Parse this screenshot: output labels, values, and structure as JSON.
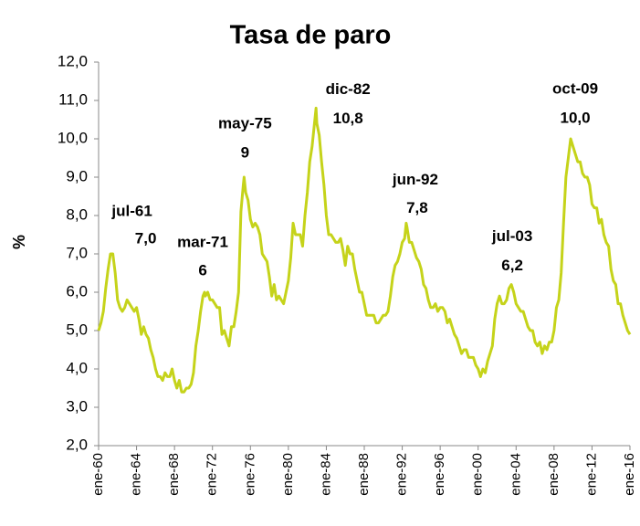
{
  "chart_data": {
    "type": "line",
    "title": "Tasa de paro",
    "y_label": "%",
    "color": "#c5d31a",
    "x": [
      "1960-01",
      "1960-04",
      "1960-07",
      "1960-10",
      "1961-01",
      "1961-04",
      "1961-07",
      "1961-10",
      "1962-01",
      "1962-04",
      "1962-07",
      "1962-10",
      "1963-01",
      "1963-04",
      "1963-07",
      "1963-10",
      "1964-01",
      "1964-04",
      "1964-07",
      "1964-10",
      "1965-01",
      "1965-04",
      "1965-07",
      "1965-10",
      "1966-01",
      "1966-04",
      "1966-07",
      "1966-10",
      "1967-01",
      "1967-04",
      "1967-07",
      "1967-10",
      "1968-01",
      "1968-04",
      "1968-07",
      "1968-10",
      "1969-01",
      "1969-04",
      "1969-07",
      "1969-10",
      "1970-01",
      "1970-04",
      "1970-07",
      "1970-10",
      "1971-01",
      "1971-03",
      "1971-04",
      "1971-07",
      "1971-10",
      "1972-01",
      "1972-04",
      "1972-07",
      "1972-10",
      "1973-01",
      "1973-04",
      "1973-07",
      "1973-10",
      "1974-01",
      "1974-04",
      "1974-07",
      "1974-10",
      "1975-01",
      "1975-04",
      "1975-05",
      "1975-07",
      "1975-10",
      "1976-01",
      "1976-04",
      "1976-07",
      "1976-10",
      "1977-01",
      "1977-04",
      "1977-07",
      "1977-10",
      "1978-01",
      "1978-04",
      "1978-07",
      "1978-10",
      "1979-01",
      "1979-04",
      "1979-07",
      "1979-10",
      "1980-01",
      "1980-04",
      "1980-07",
      "1980-10",
      "1981-01",
      "1981-04",
      "1981-07",
      "1981-10",
      "1982-01",
      "1982-04",
      "1982-07",
      "1982-10",
      "1982-12",
      "1983-01",
      "1983-04",
      "1983-07",
      "1983-10",
      "1984-01",
      "1984-04",
      "1984-07",
      "1984-10",
      "1985-01",
      "1985-04",
      "1985-07",
      "1985-10",
      "1986-01",
      "1986-04",
      "1986-07",
      "1986-10",
      "1987-01",
      "1987-04",
      "1987-07",
      "1987-10",
      "1988-01",
      "1988-04",
      "1988-07",
      "1988-10",
      "1989-01",
      "1989-04",
      "1989-07",
      "1989-10",
      "1990-01",
      "1990-04",
      "1990-07",
      "1990-10",
      "1991-01",
      "1991-04",
      "1991-07",
      "1991-10",
      "1992-01",
      "1992-04",
      "1992-06",
      "1992-07",
      "1992-10",
      "1993-01",
      "1993-04",
      "1993-07",
      "1993-10",
      "1994-01",
      "1994-04",
      "1994-07",
      "1994-10",
      "1995-01",
      "1995-04",
      "1995-07",
      "1995-10",
      "1996-01",
      "1996-04",
      "1996-07",
      "1996-10",
      "1997-01",
      "1997-04",
      "1997-07",
      "1997-10",
      "1998-01",
      "1998-04",
      "1998-07",
      "1998-10",
      "1999-01",
      "1999-04",
      "1999-07",
      "1999-10",
      "2000-01",
      "2000-04",
      "2000-07",
      "2000-10",
      "2001-01",
      "2001-04",
      "2001-07",
      "2001-10",
      "2002-01",
      "2002-04",
      "2002-07",
      "2002-10",
      "2003-01",
      "2003-04",
      "2003-07",
      "2003-10",
      "2004-01",
      "2004-04",
      "2004-07",
      "2004-10",
      "2005-01",
      "2005-04",
      "2005-07",
      "2005-10",
      "2006-01",
      "2006-04",
      "2006-07",
      "2006-10",
      "2007-01",
      "2007-04",
      "2007-07",
      "2007-10",
      "2008-01",
      "2008-04",
      "2008-07",
      "2008-10",
      "2009-01",
      "2009-04",
      "2009-07",
      "2009-10",
      "2010-01",
      "2010-04",
      "2010-07",
      "2010-10",
      "2011-01",
      "2011-04",
      "2011-07",
      "2011-10",
      "2012-01",
      "2012-04",
      "2012-07",
      "2012-10",
      "2013-01",
      "2013-04",
      "2013-07",
      "2013-10",
      "2014-01",
      "2014-04",
      "2014-07",
      "2014-10",
      "2015-01",
      "2015-04",
      "2015-07",
      "2015-10",
      "2016-01"
    ],
    "values": [
      5.0,
      5.2,
      5.5,
      6.1,
      6.6,
      7.0,
      7.0,
      6.5,
      5.8,
      5.6,
      5.5,
      5.6,
      5.8,
      5.7,
      5.6,
      5.5,
      5.6,
      5.3,
      4.9,
      5.1,
      4.9,
      4.8,
      4.5,
      4.3,
      4.0,
      3.8,
      3.8,
      3.7,
      3.9,
      3.8,
      3.8,
      4.0,
      3.7,
      3.5,
      3.7,
      3.4,
      3.4,
      3.5,
      3.5,
      3.6,
      3.9,
      4.6,
      5.0,
      5.5,
      5.9,
      6.0,
      5.9,
      6.0,
      5.8,
      5.8,
      5.7,
      5.6,
      5.6,
      4.9,
      5.0,
      4.8,
      4.6,
      5.1,
      5.1,
      5.5,
      6.0,
      8.1,
      8.8,
      9.0,
      8.6,
      8.4,
      7.9,
      7.7,
      7.8,
      7.7,
      7.5,
      7.0,
      6.9,
      6.8,
      6.4,
      5.9,
      6.2,
      5.8,
      5.9,
      5.8,
      5.7,
      6.0,
      6.3,
      6.9,
      7.8,
      7.5,
      7.5,
      7.5,
      7.2,
      8.0,
      8.6,
      9.4,
      9.8,
      10.4,
      10.8,
      10.4,
      10.1,
      9.4,
      8.8,
      8.0,
      7.5,
      7.5,
      7.4,
      7.3,
      7.3,
      7.4,
      7.1,
      6.7,
      7.2,
      7.0,
      7.0,
      6.6,
      6.3,
      6.0,
      6.0,
      5.7,
      5.4,
      5.4,
      5.4,
      5.4,
      5.2,
      5.2,
      5.3,
      5.4,
      5.4,
      5.5,
      5.9,
      6.4,
      6.7,
      6.8,
      7.0,
      7.3,
      7.4,
      7.8,
      7.7,
      7.3,
      7.3,
      7.1,
      6.9,
      6.8,
      6.6,
      6.2,
      6.1,
      5.8,
      5.6,
      5.6,
      5.7,
      5.5,
      5.6,
      5.6,
      5.5,
      5.2,
      5.3,
      5.1,
      4.9,
      4.8,
      4.6,
      4.4,
      4.5,
      4.5,
      4.3,
      4.3,
      4.3,
      4.1,
      4.0,
      3.8,
      4.0,
      3.9,
      4.2,
      4.4,
      4.6,
      5.3,
      5.7,
      5.9,
      5.7,
      5.7,
      5.8,
      6.1,
      6.2,
      6.0,
      5.7,
      5.6,
      5.5,
      5.5,
      5.3,
      5.1,
      5.0,
      5.0,
      4.7,
      4.6,
      4.7,
      4.4,
      4.6,
      4.5,
      4.7,
      4.7,
      5.0,
      5.6,
      5.8,
      6.5,
      7.8,
      9.0,
      9.5,
      10.0,
      9.8,
      9.6,
      9.4,
      9.4,
      9.1,
      9.0,
      9.0,
      8.8,
      8.3,
      8.2,
      8.2,
      7.8,
      7.9,
      7.5,
      7.3,
      7.2,
      6.6,
      6.3,
      6.2,
      5.7,
      5.7,
      5.4,
      5.2,
      5.0,
      4.9
    ],
    "xlim": [
      "1960-01",
      "2016-01"
    ],
    "xticks": [
      {
        "value": "1960-01",
        "label": "ene-60"
      },
      {
        "value": "1964-01",
        "label": "ene-64"
      },
      {
        "value": "1968-01",
        "label": "ene-68"
      },
      {
        "value": "1972-01",
        "label": "ene-72"
      },
      {
        "value": "1976-01",
        "label": "ene-76"
      },
      {
        "value": "1980-01",
        "label": "ene-80"
      },
      {
        "value": "1984-01",
        "label": "ene-84"
      },
      {
        "value": "1988-01",
        "label": "ene-88"
      },
      {
        "value": "1992-01",
        "label": "ene-92"
      },
      {
        "value": "1996-01",
        "label": "ene-96"
      },
      {
        "value": "2000-01",
        "label": "ene-00"
      },
      {
        "value": "2004-01",
        "label": "ene-04"
      },
      {
        "value": "2008-01",
        "label": "ene-08"
      },
      {
        "value": "2012-01",
        "label": "ene-12"
      },
      {
        "value": "2016-01",
        "label": "ene-16"
      }
    ],
    "ylim": [
      2,
      12
    ],
    "yticks": [
      {
        "value": 2,
        "label": "2,0"
      },
      {
        "value": 3,
        "label": "3,0"
      },
      {
        "value": 4,
        "label": "4,0"
      },
      {
        "value": 5,
        "label": "5,0"
      },
      {
        "value": 6,
        "label": "6,0"
      },
      {
        "value": 7,
        "label": "7,0"
      },
      {
        "value": 8,
        "label": "8,0"
      },
      {
        "value": 9,
        "label": "9,0"
      },
      {
        "value": 10,
        "label": "10,0"
      },
      {
        "value": 11,
        "label": "11,0"
      },
      {
        "value": 12,
        "label": "12,0"
      }
    ],
    "grid": false,
    "annotations": [
      {
        "x": "1961-07",
        "label": "jul-61",
        "value": 7.0,
        "value_label": "7,0"
      },
      {
        "x": "1971-03",
        "label": "mar-71",
        "value": 6
      },
      {
        "x": "1975-05",
        "label": "may-75",
        "value": 9
      },
      {
        "x": "1982-12",
        "label": "dic-82",
        "value": 10.8,
        "value_label": "10,8"
      },
      {
        "x": "1992-06",
        "label": "jun-92",
        "value": 7.8,
        "value_label": "7,8"
      },
      {
        "x": "2003-07",
        "label": "jul-03",
        "value": 6.2,
        "value_label": "6,2"
      },
      {
        "x": "2009-10",
        "label": "oct-09",
        "value": 10.0,
        "value_label": "10,0"
      }
    ]
  }
}
